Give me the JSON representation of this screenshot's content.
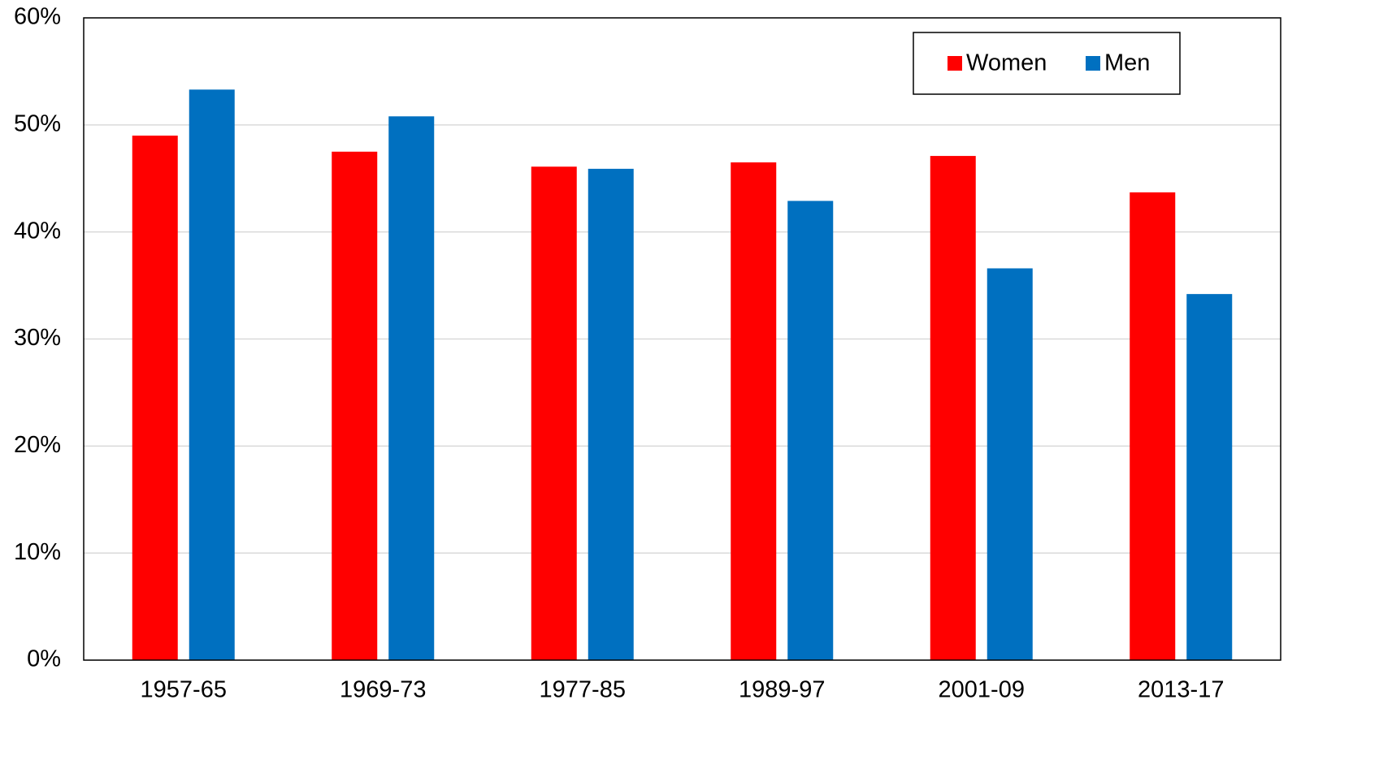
{
  "chart_data": {
    "type": "bar",
    "categories": [
      "1957-65",
      "1969-73",
      "1977-85",
      "1989-97",
      "2001-09",
      "2013-17"
    ],
    "series": [
      {
        "name": "Women",
        "color": "#ff0000",
        "values": [
          49.0,
          47.5,
          46.1,
          46.5,
          47.1,
          43.7
        ]
      },
      {
        "name": "Men",
        "color": "#0070c0",
        "values": [
          53.3,
          50.8,
          45.9,
          42.9,
          36.6,
          34.2
        ]
      }
    ],
    "ylim": [
      0,
      60
    ],
    "yticks": [
      {
        "value": 0,
        "label": "0%"
      },
      {
        "value": 10,
        "label": "10%"
      },
      {
        "value": 20,
        "label": "20%"
      },
      {
        "value": 30,
        "label": "30%"
      },
      {
        "value": 40,
        "label": "40%"
      },
      {
        "value": 50,
        "label": "50%"
      },
      {
        "value": 60,
        "label": "60%"
      }
    ],
    "grid": true,
    "legend": "top-right"
  }
}
